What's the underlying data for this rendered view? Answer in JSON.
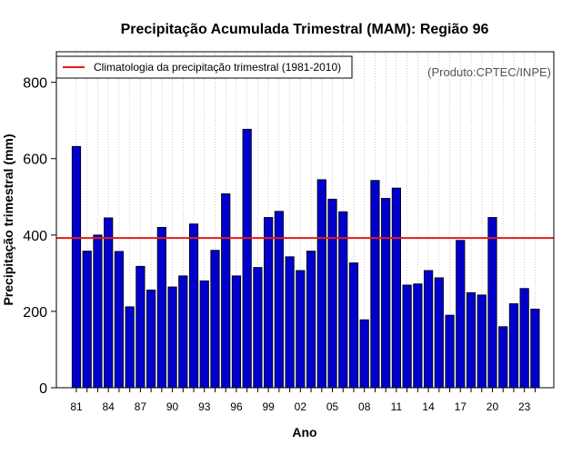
{
  "chart_data": {
    "type": "bar",
    "title": "Precipitação Acumulada Trimestral (MAM): Região 96",
    "xlabel": "Ano",
    "ylabel": "Precipitação trimestral (mm)",
    "credit": "(Produto:CPTEC/INPE)",
    "ylim": [
      0,
      880
    ],
    "yticks": [
      0,
      200,
      400,
      600,
      800
    ],
    "x_tick_labels": [
      "81",
      "84",
      "87",
      "90",
      "93",
      "96",
      "99",
      "02",
      "05",
      "08",
      "11",
      "14",
      "17",
      "20",
      "23"
    ],
    "categories": [
      "1981",
      "1982",
      "1983",
      "1984",
      "1985",
      "1986",
      "1987",
      "1988",
      "1989",
      "1990",
      "1991",
      "1992",
      "1993",
      "1994",
      "1995",
      "1996",
      "1997",
      "1998",
      "1999",
      "2000",
      "2001",
      "2002",
      "2003",
      "2004",
      "2005",
      "2006",
      "2007",
      "2008",
      "2009",
      "2010",
      "2011",
      "2012",
      "2013",
      "2014",
      "2015",
      "2016",
      "2017",
      "2018",
      "2019",
      "2020",
      "2021",
      "2022",
      "2023",
      "2024"
    ],
    "values": [
      632,
      358,
      400,
      445,
      357,
      212,
      318,
      256,
      420,
      264,
      293,
      429,
      280,
      360,
      508,
      293,
      677,
      315,
      446,
      462,
      343,
      307,
      358,
      545,
      494,
      461,
      327,
      178,
      543,
      496,
      523,
      269,
      272,
      307,
      288,
      190,
      386,
      249,
      243,
      446,
      160,
      220,
      260,
      206
    ],
    "bar_color": "#0000cc",
    "reference_line": {
      "label": "Climatologia da precipitação trimestral (1981-2010)",
      "value": 392,
      "color": "#e31a1c"
    },
    "legend_position": "top-left",
    "grid": "vertical dotted"
  }
}
